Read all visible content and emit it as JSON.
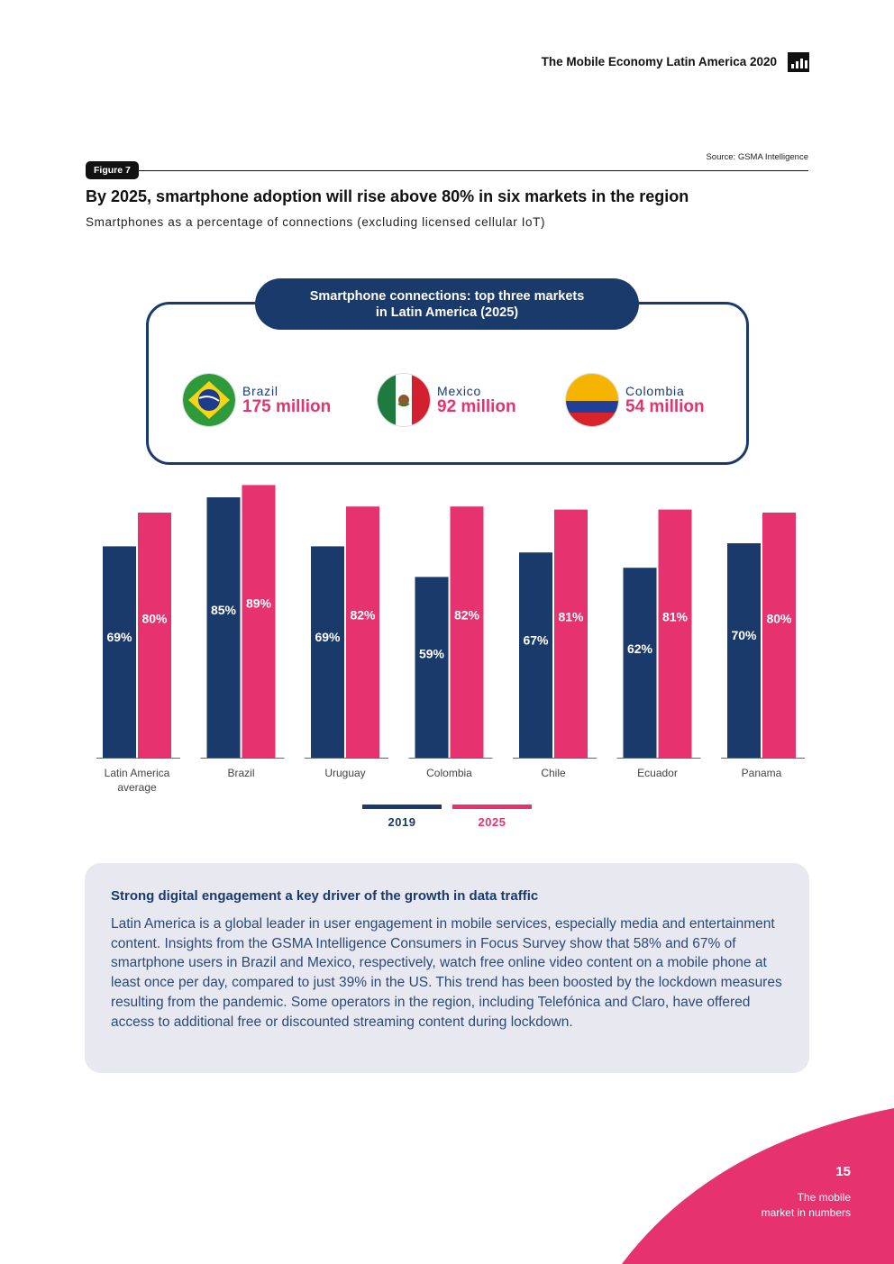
{
  "header": {
    "title": "The Mobile Economy Latin America 2020",
    "icon": "bar-chart-icon"
  },
  "figure": {
    "source": "Source: GSMA Intelligence",
    "label": "Figure 7",
    "title": "By 2025, smartphone adoption will rise above 80% in six markets in the region",
    "subtitle": "Smartphones as a percentage of connections (excluding licensed cellular IoT)"
  },
  "top_markets": {
    "heading_line1": "Smartphone connections: top three markets",
    "heading_line2": "in Latin America (2025)",
    "items": [
      {
        "country": "Brazil",
        "value": "175 million",
        "flag_icon": "brazil-flag-icon"
      },
      {
        "country": "Mexico",
        "value": "92 million",
        "flag_icon": "mexico-flag-icon"
      },
      {
        "country": "Colombia",
        "value": "54 million",
        "flag_icon": "colombia-flag-icon"
      }
    ]
  },
  "chart_data": {
    "type": "bar",
    "title": "By 2025, smartphone adoption will rise above 80% in six markets in the region",
    "xlabel": "",
    "ylabel": "Smartphones as a percentage of connections",
    "ylim": [
      0,
      100
    ],
    "categories": [
      [
        "Latin America",
        "average"
      ],
      [
        "Brazil"
      ],
      [
        "Uruguay"
      ],
      [
        "Colombia"
      ],
      [
        "Chile"
      ],
      [
        "Ecuador"
      ],
      [
        "Panama"
      ]
    ],
    "series": [
      {
        "name": "2019",
        "color": "#1a3a6b",
        "values": [
          69,
          85,
          69,
          59,
          67,
          62,
          70
        ],
        "labels": [
          "69%",
          "85%",
          "69%",
          "59%",
          "67%",
          "62%",
          "70%"
        ]
      },
      {
        "name": "2025",
        "color": "#e6336f",
        "values": [
          80,
          89,
          82,
          82,
          81,
          81,
          80
        ],
        "labels": [
          "80%",
          "89%",
          "82%",
          "82%",
          "81%",
          "81%",
          "80%"
        ]
      }
    ],
    "legend_position": "bottom-center",
    "grid": false
  },
  "info": {
    "title": "Strong digital engagement a key driver of the growth in data traffic",
    "body": "Latin America is a global leader in user engagement in mobile services, especially media and entertainment content. Insights from the GSMA Intelligence Consumers in Focus Survey show that 58% and 67% of smartphone users in Brazil and Mexico, respectively, watch free online video content on a mobile phone at least once per day, compared to just 39% in the US. This trend has been boosted by the lockdown measures resulting from the pandemic. Some operators in the region, including Telefónica and Claro, have offered access to additional free or discounted streaming content during lockdown."
  },
  "footer": {
    "page_number": "15",
    "section_line1": "The mobile",
    "section_line2": "market in numbers",
    "accent_color": "#e6336f"
  }
}
